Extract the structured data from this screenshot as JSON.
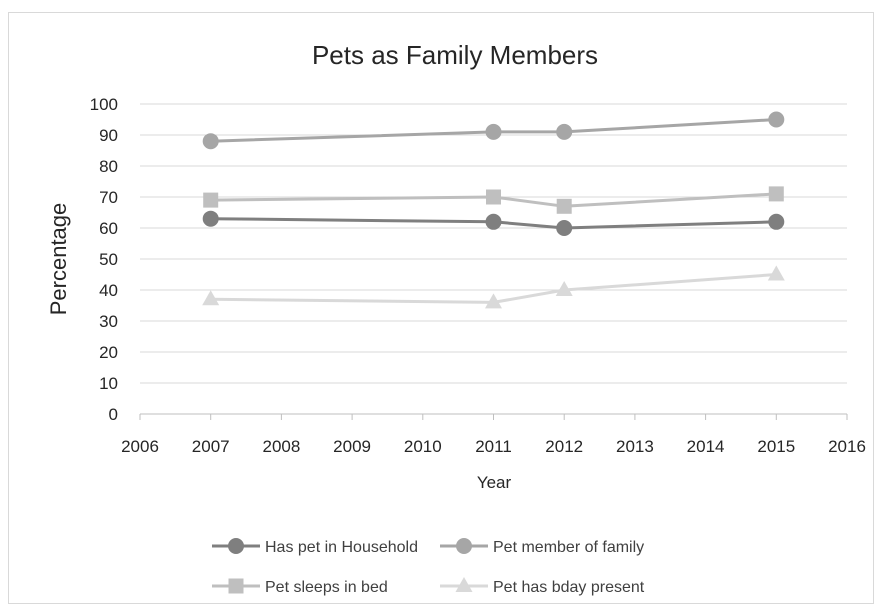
{
  "chart_data": {
    "type": "line",
    "title": "Pets as Family Members",
    "xlabel": "Year",
    "ylabel": "Percentage",
    "xlim": [
      2006,
      2016
    ],
    "ylim": [
      0,
      100
    ],
    "xticks": [
      2006,
      2007,
      2008,
      2009,
      2010,
      2011,
      2012,
      2013,
      2014,
      2015,
      2016
    ],
    "yticks": [
      0,
      10,
      20,
      30,
      40,
      50,
      60,
      70,
      80,
      90,
      100
    ],
    "grid": "horizontal",
    "legend_position": "bottom",
    "series": [
      {
        "name": "Has pet in Household",
        "color": "#7f7f7f",
        "marker": "circle",
        "x": [
          2007,
          2011,
          2012,
          2015
        ],
        "values": [
          63,
          62,
          60,
          62
        ]
      },
      {
        "name": "Pet member of family",
        "color": "#a6a6a6",
        "marker": "circle",
        "x": [
          2007,
          2011,
          2012,
          2015
        ],
        "values": [
          88,
          91,
          91,
          95
        ]
      },
      {
        "name": "Pet sleeps in bed",
        "color": "#bfbfbf",
        "marker": "square",
        "x": [
          2007,
          2011,
          2012,
          2015
        ],
        "values": [
          69,
          70,
          67,
          71
        ]
      },
      {
        "name": "Pet has bday present",
        "color": "#d9d9d9",
        "marker": "triangle",
        "x": [
          2007,
          2011,
          2012,
          2015
        ],
        "values": [
          37,
          36,
          40,
          45
        ]
      }
    ]
  }
}
